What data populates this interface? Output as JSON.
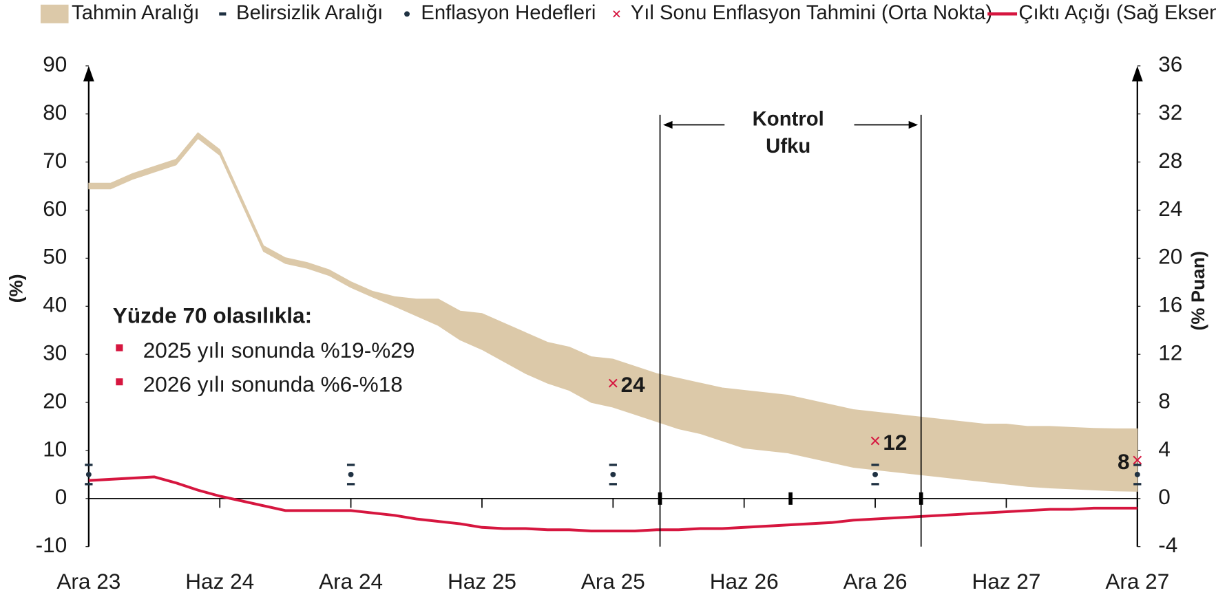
{
  "chart_data": {
    "type": "fan",
    "ylabel": "(%)",
    "y2label": "(% Puan)",
    "categories": [
      "Ara 23",
      null,
      null,
      null,
      null,
      null,
      "Haz 24",
      null,
      null,
      null,
      null,
      null,
      "Ara 24",
      null,
      null,
      null,
      null,
      null,
      "Haz 25",
      null,
      null,
      null,
      null,
      null,
      "Ara 25",
      null,
      null,
      null,
      null,
      null,
      "Haz 26",
      null,
      null,
      null,
      null,
      null,
      "Ara 26",
      null,
      null,
      null,
      null,
      null,
      "Haz 27",
      null,
      null,
      null,
      null,
      null,
      "Ara 27"
    ],
    "ylim": [
      -10,
      90
    ],
    "yticks": [
      -10,
      0,
      10,
      20,
      30,
      40,
      50,
      60,
      70,
      80,
      90
    ],
    "y2lim": [
      -4,
      36
    ],
    "y2ticks": [
      -4,
      0,
      4,
      8,
      12,
      16,
      20,
      24,
      28,
      32,
      36
    ],
    "series": [
      {
        "name": "Tahmin Aralığı",
        "type": "range",
        "color": "#dcc9a9",
        "upper": [
          65.6,
          65.6,
          67.6,
          69.1,
          70.6,
          76.1,
          72.6,
          62.6,
          52.6,
          50.1,
          49.1,
          47.6,
          45.1,
          43.1,
          42,
          41.5,
          41.5,
          39,
          38.5,
          36.5,
          34.5,
          32.5,
          31.5,
          29.5,
          29,
          27.5,
          26,
          25,
          24,
          23,
          22.5,
          22,
          21.5,
          20.5,
          19.5,
          18.5,
          18,
          17.5,
          17,
          16.5,
          16,
          15.5,
          15.5,
          15,
          15,
          14.8,
          14.6,
          14.5,
          14.5
        ],
        "lower": [
          64.4,
          64.4,
          66.4,
          67.9,
          69.4,
          74.9,
          71.4,
          61.4,
          51.4,
          48.9,
          47.9,
          46.4,
          43.9,
          41.9,
          40,
          38,
          36,
          33,
          31,
          28.5,
          26,
          24,
          22.5,
          20,
          19,
          17.5,
          16,
          14.5,
          13.5,
          12,
          10.5,
          10,
          9.5,
          8.5,
          7.5,
          6.5,
          6,
          5.5,
          5,
          4.5,
          4,
          3.5,
          3,
          2.5,
          2.2,
          2,
          1.8,
          1.6,
          1.5
        ]
      },
      {
        "name": "Belirsizlik Aralığı",
        "type": "errorbar",
        "color": "#1f3142",
        "x": [
          0,
          12,
          24,
          36,
          48
        ],
        "low": [
          3,
          3,
          3,
          3,
          3
        ],
        "high": [
          7,
          7,
          7,
          7,
          7
        ]
      },
      {
        "name": "Enflasyon Hedefleri",
        "type": "points",
        "color": "#1f3142",
        "x": [
          0,
          12,
          24,
          36,
          48
        ],
        "values": [
          5,
          5,
          5,
          5,
          5
        ]
      },
      {
        "name": "Yıl Sonu Enflasyon Tahmini (Orta Nokta)",
        "type": "cross",
        "color": "#d6163f",
        "x": [
          24,
          36,
          48
        ],
        "values": [
          24,
          12,
          8
        ]
      },
      {
        "name": "Çıktı Açığı (Sağ Eksen)",
        "type": "line",
        "axis": "y2",
        "color": "#d6163f",
        "values": [
          1.5,
          1.6,
          1.7,
          1.8,
          1.3,
          0.7,
          0.2,
          -0.2,
          -0.6,
          -1.0,
          -1.0,
          -1.0,
          -1.0,
          -1.2,
          -1.4,
          -1.7,
          -1.9,
          -2.1,
          -2.4,
          -2.5,
          -2.5,
          -2.6,
          -2.6,
          -2.7,
          -2.7,
          -2.7,
          -2.6,
          -2.6,
          -2.5,
          -2.5,
          -2.4,
          -2.3,
          -2.2,
          -2.1,
          -2.0,
          -1.8,
          -1.7,
          -1.6,
          -1.5,
          -1.4,
          -1.3,
          -1.2,
          -1.1,
          -1.0,
          -0.9,
          -0.9,
          -0.8,
          -0.8,
          -0.8
        ]
      }
    ],
    "control_horizon": {
      "label": [
        "Kontrol",
        "Ufku"
      ],
      "x": [
        26.15,
        38.1
      ]
    },
    "annotation": {
      "title": "Yüzde 70 olasılıkla:",
      "items": [
        "2025 yılı sonunda %19-%29",
        "2026 yılı sonunda %6-%18"
      ],
      "color": "#d6163f"
    }
  }
}
